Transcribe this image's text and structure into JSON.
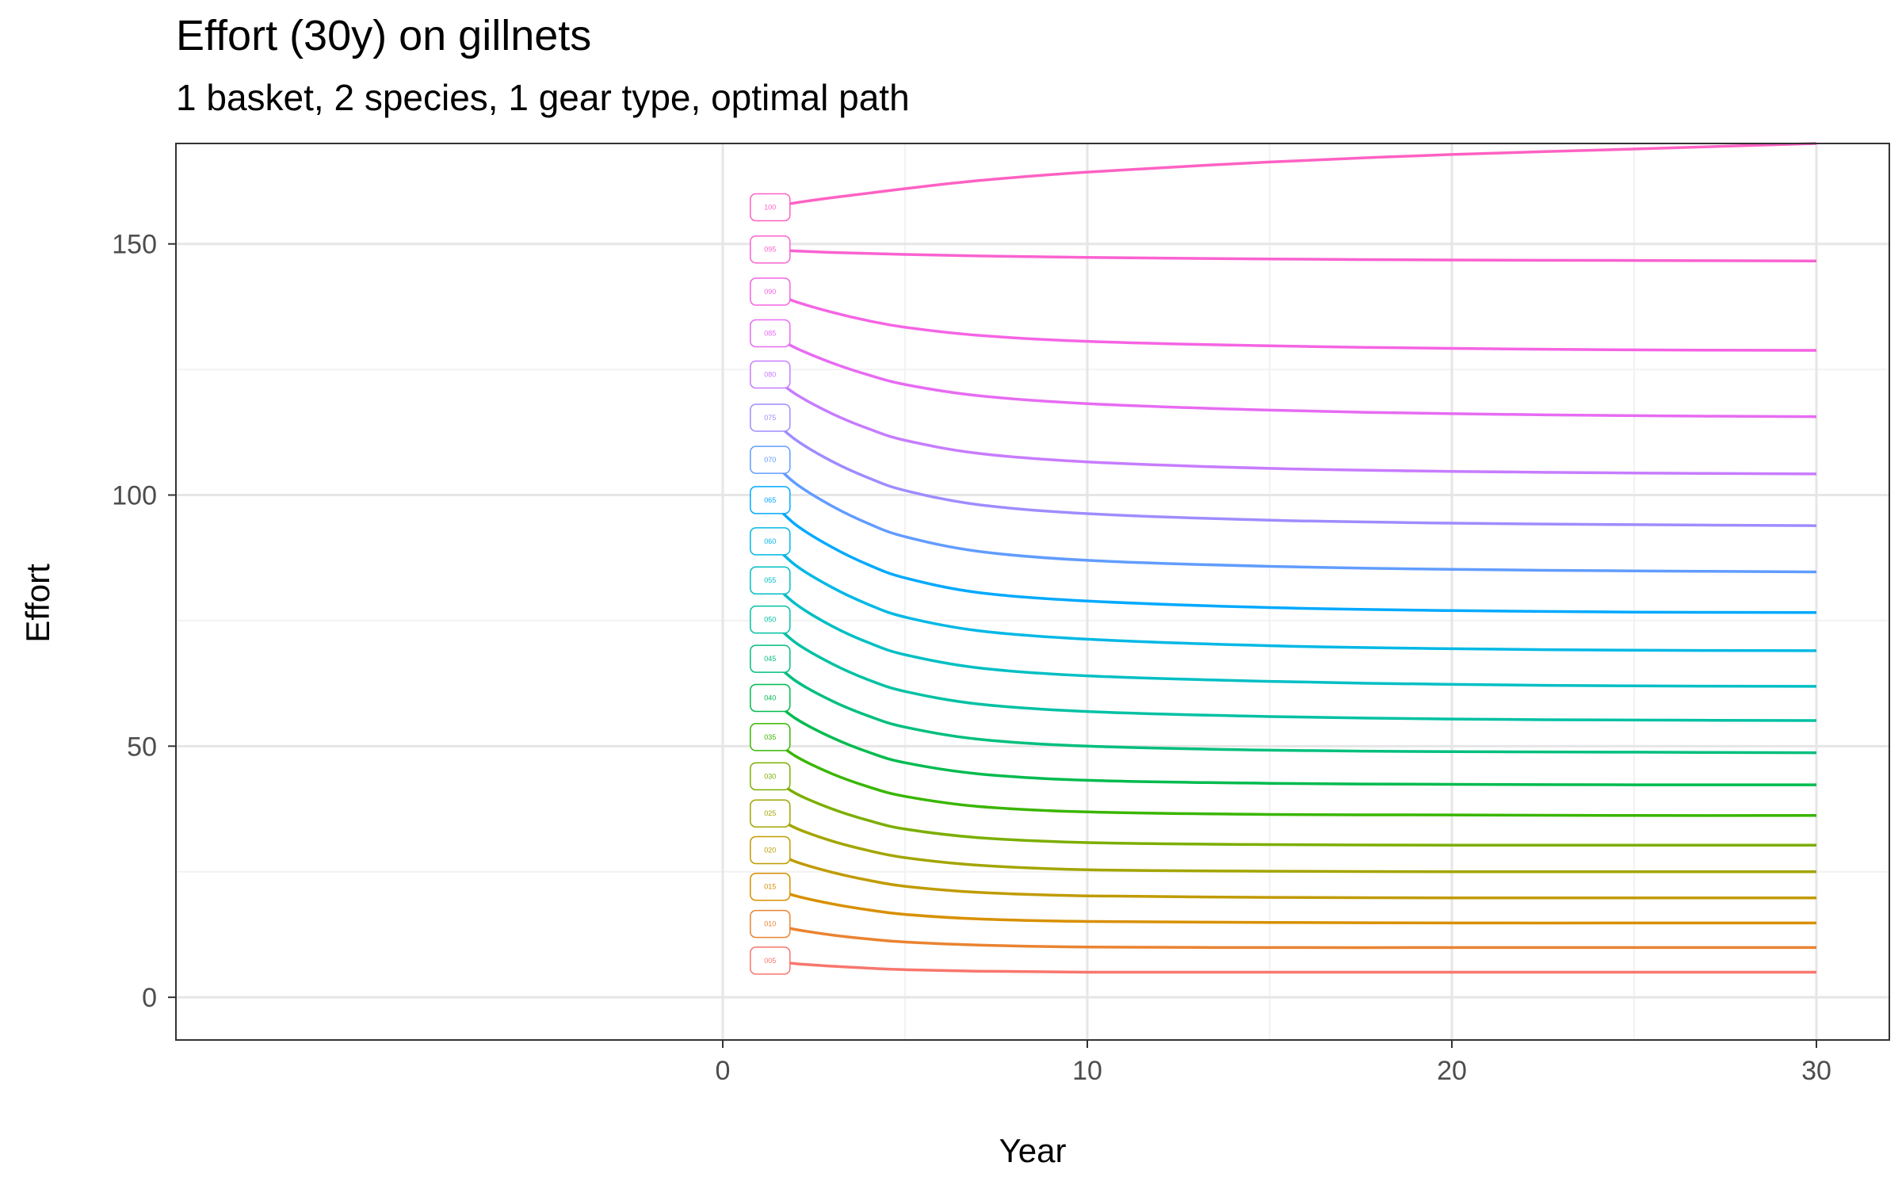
{
  "chart_data": {
    "type": "line",
    "title": "Effort (30y) on gillnets",
    "subtitle": "1 basket, 2 species, 1 gear type, optimal path",
    "xlabel": "Year",
    "ylabel": "Effort",
    "xlim": [
      -15,
      32
    ],
    "ylim": [
      -8.5,
      170
    ],
    "x_ticks": [
      0,
      10,
      20,
      30
    ],
    "y_ticks": [
      0,
      50,
      100,
      150
    ],
    "grid": true,
    "legend": "none",
    "curve_labels_at_x": 1.3,
    "x": [
      1.3,
      2,
      3,
      4,
      5,
      7,
      10,
      15,
      20,
      25,
      30
    ],
    "series": [
      {
        "name": "005",
        "color": "#F8766D",
        "values": [
          7.3,
          6.7,
          6.2,
          5.8,
          5.5,
          5.2,
          5.0,
          5.0,
          5.0,
          5.0,
          5.0
        ]
      },
      {
        "name": "010",
        "color": "#EA8331",
        "values": [
          14.6,
          13.5,
          12.4,
          11.6,
          11.0,
          10.4,
          10.0,
          9.9,
          9.9,
          9.9,
          9.9
        ]
      },
      {
        "name": "015",
        "color": "#D89000",
        "values": [
          22.0,
          20.2,
          18.6,
          17.4,
          16.5,
          15.6,
          15.1,
          14.9,
          14.8,
          14.8,
          14.8
        ]
      },
      {
        "name": "020",
        "color": "#C09B00",
        "values": [
          29.3,
          27.0,
          24.9,
          23.3,
          22.1,
          20.9,
          20.2,
          19.9,
          19.8,
          19.8,
          19.8
        ]
      },
      {
        "name": "025",
        "color": "#A3A500",
        "values": [
          36.6,
          33.7,
          31.1,
          29.2,
          27.8,
          26.3,
          25.4,
          25.1,
          25.0,
          25.0,
          25.0
        ]
      },
      {
        "name": "030",
        "color": "#7CAE00",
        "values": [
          44.0,
          40.6,
          37.5,
          35.2,
          33.5,
          31.8,
          30.8,
          30.4,
          30.3,
          30.3,
          30.3
        ]
      },
      {
        "name": "035",
        "color": "#39B600",
        "values": [
          51.8,
          48.0,
          44.5,
          41.9,
          40.0,
          38.0,
          36.9,
          36.4,
          36.3,
          36.2,
          36.2
        ]
      },
      {
        "name": "040",
        "color": "#00BB4E",
        "values": [
          59.6,
          55.5,
          51.7,
          48.8,
          46.7,
          44.5,
          43.2,
          42.6,
          42.4,
          42.3,
          42.3
        ]
      },
      {
        "name": "045",
        "color": "#00BF7D",
        "values": [
          67.4,
          63.0,
          59.0,
          56.0,
          53.8,
          51.4,
          50.0,
          49.2,
          48.9,
          48.8,
          48.7
        ]
      },
      {
        "name": "050",
        "color": "#00C1A3",
        "values": [
          75.2,
          70.6,
          66.4,
          63.2,
          60.9,
          58.4,
          56.9,
          55.9,
          55.4,
          55.2,
          55.1
        ]
      },
      {
        "name": "055",
        "color": "#00BFC4",
        "values": [
          83.0,
          78.3,
          73.9,
          70.6,
          68.2,
          65.6,
          64.0,
          62.9,
          62.3,
          62.0,
          61.9
        ]
      },
      {
        "name": "060",
        "color": "#00B8E5",
        "values": [
          90.8,
          86.0,
          81.6,
          78.2,
          75.7,
          73.0,
          71.3,
          70.0,
          69.4,
          69.1,
          69.0
        ]
      },
      {
        "name": "065",
        "color": "#00A9FF",
        "values": [
          99.0,
          94.1,
          89.6,
          86.1,
          83.5,
          80.6,
          78.9,
          77.6,
          77.0,
          76.7,
          76.6
        ]
      },
      {
        "name": "070",
        "color": "#619CFF",
        "values": [
          107.0,
          102.3,
          97.8,
          94.3,
          91.7,
          88.8,
          87.0,
          85.8,
          85.2,
          84.9,
          84.7
        ]
      },
      {
        "name": "075",
        "color": "#9F8CFF",
        "values": [
          115.4,
          111.0,
          106.7,
          103.4,
          100.9,
          98.1,
          96.3,
          95.0,
          94.4,
          94.1,
          93.9
        ]
      },
      {
        "name": "080",
        "color": "#C77CFF",
        "values": [
          124.0,
          120.1,
          116.2,
          113.2,
          110.9,
          108.3,
          106.6,
          105.3,
          104.7,
          104.4,
          104.2
        ]
      },
      {
        "name": "085",
        "color": "#E76BF3",
        "values": [
          132.2,
          129.3,
          126.3,
          123.9,
          122.0,
          119.8,
          118.2,
          116.9,
          116.2,
          115.8,
          115.6
        ]
      },
      {
        "name": "090",
        "color": "#F564E3",
        "values": [
          140.5,
          138.5,
          136.4,
          134.7,
          133.4,
          131.8,
          130.6,
          129.7,
          129.2,
          128.9,
          128.8
        ]
      },
      {
        "name": "095",
        "color": "#FA62D0",
        "values": [
          148.9,
          148.6,
          148.3,
          148.1,
          147.9,
          147.6,
          147.3,
          147.0,
          146.8,
          146.7,
          146.6
        ]
      },
      {
        "name": "100",
        "color": "#FF61C3",
        "values": [
          157.3,
          158.2,
          159.2,
          160.1,
          161.0,
          162.6,
          164.3,
          166.3,
          167.8,
          168.9,
          170.0
        ]
      }
    ]
  }
}
